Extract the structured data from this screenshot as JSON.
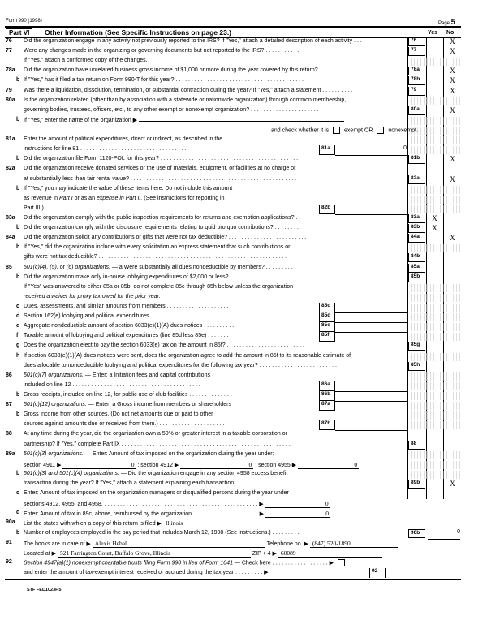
{
  "header": {
    "form": "Form 990 (1998)",
    "page_label": "Page",
    "page_num": "5"
  },
  "part": {
    "label": "Part VI",
    "title": "Other Information (See Specific Instructions on page 23.)",
    "yes": "Yes",
    "no": "No"
  },
  "lines": [
    {
      "n": "76",
      "t": [
        {
          "t": "Did the organization engage in any activity not previously reported to the IRS? If \"Yes,\" attach a detailed description of each activity . . . ."
        }
      ],
      "ref": "76",
      "no": "X"
    },
    {
      "n": "77",
      "t": [
        {
          "t": "Were any changes made in the organizing or governing documents but not reported to the IRS? . . . . . . . . . . ."
        }
      ],
      "ref": "77",
      "no": "X"
    },
    {
      "t": [
        {
          "t": "If \"Yes,\" attach a conformed copy of the changes."
        }
      ],
      "shade": true
    },
    {
      "n": "78a",
      "t": [
        {
          "t": "Did the organization have unrelated business gross income of $1,000 or more during the year covered by this return? . . . . . . . . . . ."
        }
      ],
      "ref": "78a",
      "no": "X"
    },
    {
      "l": "b",
      "t": [
        {
          "t": "If \"Yes,\" has it filed a tax return on Form 990-T for this year? . . . . . . . . . . . . . . . . . . . . . . . . . . . . . . . . . . . . . . . . ."
        }
      ],
      "ref": "78b",
      "no": "X"
    },
    {
      "n": "79",
      "t": [
        {
          "t": "Was there a liquidation, dissolution, termination, or substantial contraction during the year? If \"Yes,\" attach a statement . . . . . . . . . ."
        }
      ],
      "ref": "79",
      "no": "X"
    },
    {
      "n": "80a",
      "t": [
        {
          "t": "Is the organization related (other than by association with a statewide or nationwide organization) through common membership,"
        }
      ],
      "shade": true
    },
    {
      "t": [
        {
          "t": "governing bodies, trustees, officers, etc., to any other exempt or nonexempt organization? . . . . . . . . . . . . . . . . . . . . . . ."
        }
      ],
      "ref": "80a",
      "no": "X"
    },
    {
      "l": "b",
      "t": [
        {
          "t": "If \"Yes,\" enter the name of the organization ▶ "
        },
        {
          "fill": "",
          "w": 250
        }
      ],
      "shade": true
    },
    {
      "t": [
        {
          "fill": "",
          "w": 300
        },
        {
          "t": " and check whether it is "
        },
        {
          "box": true
        },
        {
          "t": " exempt OR "
        },
        {
          "box": true
        },
        {
          "t": " nonexempt."
        }
      ],
      "shade": true
    },
    {
      "n": "81a",
      "t": [
        {
          "t": "Enter the amount of political expenditures, direct or indirect, as described in the"
        }
      ],
      "shade": true
    },
    {
      "t": [
        {
          "t": "instructions for line 81 . . . . . . . . . . . . . . . . . . . . . . . . . . . . . . . . . ."
        }
      ],
      "mid": "81a",
      "val": "0",
      "shade": true
    },
    {
      "l": "b",
      "t": [
        {
          "t": "Did the organization file Form 1120-POL for this year? . . . . . . . . . . . . . . . . . . . . . . . . . . . . . . . . . . . . . . . . . . . ."
        }
      ],
      "ref": "81b",
      "no": "X"
    },
    {
      "n": "82a",
      "t": [
        {
          "t": "Did the organization receive donated services or the use of materials, equipment, or facilities at no charge or"
        }
      ]
    },
    {
      "t": [
        {
          "t": "at substantially less than fair rental value? . . . . . . . . . . . . . . . . . . . . . . . . . . . . . . . . . . . . . . . . . . . . . . . . . . . . ."
        }
      ],
      "ref": "82a",
      "no": "X"
    },
    {
      "l": "b",
      "t": [
        {
          "t": "If \"Yes,\" you may indicate the value of these items here. Do not include this amount"
        }
      ],
      "shade": true
    },
    {
      "t": [
        {
          "t": "as revenue in "
        },
        {
          "i": "Part I"
        },
        {
          "t": " or as an "
        },
        {
          "i": "expense in Part II."
        },
        {
          "t": " (See instructions for reporting in"
        }
      ],
      "shade": true
    },
    {
      "t": [
        {
          "t": "Part III.) . . . . . . . . . . . . . . . . . . . . . . . . . . . . . . . . . . . . . . . . . . . . . . ."
        }
      ],
      "mid": "82b",
      "val": "",
      "shade": true
    },
    {
      "n": "83a",
      "t": [
        {
          "t": "Did the organization comply with the public inspection requirements for returns and exemption applications? . ."
        }
      ],
      "ref": "83a",
      "yes": "X"
    },
    {
      "l": "b",
      "t": [
        {
          "t": "Did the organization comply with the disclosure requirements relating to quid pro quo contributions? . . . . . . . ."
        }
      ],
      "ref": "83b",
      "yes": "X"
    },
    {
      "n": "84a",
      "t": [
        {
          "t": "Did the organization solicit any contributions or gifts that were not tax deductible? . . . . . . . . . . . . . . . . . . . . . . . . ."
        }
      ],
      "ref": "84a",
      "no": "X"
    },
    {
      "l": "b",
      "t": [
        {
          "t": "If \"Yes,\" did the organization include with every solicitation an express statement that such contributions or"
        }
      ],
      "shade": true
    },
    {
      "t": [
        {
          "t": "gifts were not tax deductible? . . . . . . . . . . . . . . . . . . . . . . . . . . . . . . . . . . . . . . . . . . . . . . . . . . . . . . . . . . . ."
        }
      ],
      "ref": "84b"
    },
    {
      "n": "85",
      "t": [
        {
          "i": "501(c)(4), (5),"
        },
        {
          "t": " or "
        },
        {
          "i": "(6) organizations."
        },
        {
          "t": " — a Were substantially all dues nondeductible by members? . . . . . . . . . ."
        }
      ],
      "ref": "85a"
    },
    {
      "l": "b",
      "t": [
        {
          "t": "Did the organization make only in-house lobbying expenditures of $2,000 or less? . . . . . . . . . . . . . . . . . . . . . . . ."
        }
      ],
      "ref": "85b"
    },
    {
      "t": [
        {
          "t": "If \"Yes\" was answered to either 85a or 85b, do not complete 85c through 85h below unless the organization"
        }
      ],
      "shade": true
    },
    {
      "t": [
        {
          "i": "received a waiver for proxy tax owed for the prior year."
        }
      ],
      "shade": true
    },
    {
      "l": "c",
      "t": [
        {
          "t": "Dues, assessments, and similar amounts from members . . . . . . . . . . . . . . . . . . . . ."
        }
      ],
      "mid": "85c",
      "val": "",
      "shade": true
    },
    {
      "l": "d",
      "t": [
        {
          "t": "Section 162(e) lobbying and political expenditures . . . . . . . . . . . . . . . . . . . . . . . ."
        }
      ],
      "mid": "85d",
      "val": "",
      "shade": true
    },
    {
      "l": "e",
      "t": [
        {
          "t": "Aggregate nondeductible amount of section 6033(e)(1)(A) dues notices . . . . . . . . . ."
        }
      ],
      "mid": "85e",
      "val": "",
      "shade": true
    },
    {
      "l": "f",
      "t": [
        {
          "t": "Taxable amount of lobbying and political expenditures (line 85d less 85e) . . . . . . . ."
        }
      ],
      "mid": "85f",
      "val": "",
      "shade": true
    },
    {
      "l": "g",
      "t": [
        {
          "t": "Does the organization elect to pay the section 6033(e) tax on the amount in 85f? . . . . . . . . . . . . . . . . . . . . . . . . ."
        }
      ],
      "ref": "85g"
    },
    {
      "l": "h",
      "t": [
        {
          "t": "If section 6033(e)(1)(A) dues notices were sent, does the organization agree to add the amount in 85f to its reasonable estimate of"
        }
      ],
      "shade": true
    },
    {
      "t": [
        {
          "t": "dues allocable to nondeductible lobbying and political expenditures for the following tax year? . . . . . . . . . . . . . . . . . . . . . . . . ."
        }
      ],
      "ref": "85h"
    },
    {
      "n": "86",
      "t": [
        {
          "i": "501(c)(7) organizations."
        },
        {
          "t": " — Enter: a Initiation fees and capital contributions"
        }
      ],
      "shade": true
    },
    {
      "t": [
        {
          "t": "included on line 12 . . . . . . . . . . . . . . . . . . . . . . . . . . . . . . . . . . . . . . . . ."
        }
      ],
      "mid": "86a",
      "val": "",
      "shade": true
    },
    {
      "l": "b",
      "t": [
        {
          "t": "Gross receipts, included on line 12, for public use of club facilities . . . . . . . . . . . . . ."
        }
      ],
      "mid": "86b",
      "val": "",
      "shade": true
    },
    {
      "n": "87",
      "t": [
        {
          "i": "501(c)(12) organizations."
        },
        {
          "t": " — Enter: a Gross income from members or shareholders"
        }
      ],
      "mid": "87a",
      "val": "",
      "shade": true
    },
    {
      "l": "b",
      "t": [
        {
          "t": "Gross income from other sources. (Do not net amounts due or paid to other"
        }
      ],
      "shade": true
    },
    {
      "t": [
        {
          "t": "sources against amounts due or received from them.) . . . . . . . . . . . . . . . . . . . . ."
        }
      ],
      "mid": "87b",
      "val": "",
      "shade": true
    },
    {
      "n": "88",
      "t": [
        {
          "t": "At any time during the year, did the organization own a 50% or greater interest in a taxable corporation or"
        }
      ]
    },
    {
      "t": [
        {
          "t": "partnership? If \"Yes,\" complete Part IX . . . . . . . . . . . . . . . . . . . . . . . . . . . . . . . . . . . . . . . . . . . . . . . . . . . . . ."
        }
      ],
      "ref": "88"
    },
    {
      "n": "89a",
      "t": [
        {
          "i": "501(c)(3) organizations."
        },
        {
          "t": " — Enter: Amount of tax imposed on the organization during the year under:"
        }
      ],
      "shade": true
    },
    {
      "t": [
        {
          "t": "section 4911 ▶ "
        },
        {
          "fill": "0",
          "w": 85,
          "r": true
        },
        {
          "t": " ; section 4912 ▶ "
        },
        {
          "fill": "0",
          "w": 85,
          "r": true
        },
        {
          "t": " ; section 4955 ▶ "
        },
        {
          "fill": "0",
          "w": 70,
          "r": true
        }
      ],
      "shade": true
    },
    {
      "l": "b",
      "t": [
        {
          "i": "501(c)(3) and 501(c)(4) organizations."
        },
        {
          "t": " — Did the organization engage in any section 4958 excess benefit"
        }
      ],
      "shade": true
    },
    {
      "t": [
        {
          "t": "transaction during the year? If \"Yes,\" attach a statement explaining each transaction . . . . . . . . . . . . . . . . . . . . . ."
        }
      ],
      "ref": "89b",
      "no": "X"
    },
    {
      "l": "c",
      "t": [
        {
          "t": "Enter: Amount of tax imposed on the organization managers or disqualified persons during the year under"
        }
      ]
    },
    {
      "t": [
        {
          "t": "sections 4912, 4955, and 4958. . . . . . . . . . . . . . . . . . . . . . . . . . . . . . . . . . . . . . . . . . . . . . . . . . ▶ "
        },
        {
          "fill": "0",
          "w": 75,
          "r": true
        }
      ]
    },
    {
      "l": "d",
      "t": [
        {
          "t": "Enter: Amount of tax in 89c, above, reimbursed by the organization . . . . . . . . . . . . . . . . . . . . . ▶ "
        },
        {
          "fill": "0",
          "w": 75,
          "r": true
        }
      ]
    },
    {
      "n": "90a",
      "t": [
        {
          "t": "List the states with which a copy of this return is filed ▶ "
        },
        {
          "fill": "Illinois",
          "w": 350
        }
      ]
    },
    {
      "l": "b",
      "t": [
        {
          "t": "Number of employees employed in the pay period that includes March 12, 1998 (See instructions.) . . . . . . . . . "
        }
      ],
      "box90b": "90b",
      "val90b": "0"
    },
    {
      "n": "91",
      "t": [
        {
          "t": "The books are in care of ▶ "
        },
        {
          "fill": "Alexis Hebal",
          "w": 210
        },
        {
          "t": "  Telephone no. ▶ "
        },
        {
          "fill": "(847) 520-1890",
          "w": 105
        }
      ]
    },
    {
      "t": [
        {
          "t": "Located at ▶ "
        },
        {
          "fill": "521 Farrington Court, Buffalo Grove, Illinois",
          "w": 235
        },
        {
          "t": "  ZIP + 4 ▶ "
        },
        {
          "fill": "60089",
          "w": 125
        }
      ]
    },
    {
      "n": "92",
      "t": [
        {
          "i": "Section 4947(a)(1) nonexempt charitable trusts filing Form 990 in lieu of Form 1041"
        },
        {
          "t": " — Check here . . . . . . . . . . . . . . . . . . ▶ "
        },
        {
          "box": true
        }
      ]
    },
    {
      "t": [
        {
          "t": "and enter the amount of tax-exempt interest received or accrued during the tax year . . . . . . . . . ▶ "
        }
      ],
      "box92": "92"
    }
  ],
  "footer": {
    "code": "STF FED1023F.5"
  }
}
